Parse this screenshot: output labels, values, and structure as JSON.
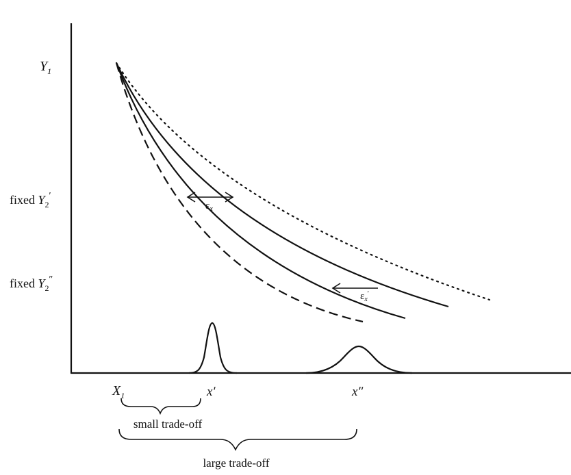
{
  "axes": {
    "y_top_main": "Y",
    "y_top_sub": "1",
    "y_fixed1_prefix": "fixed ",
    "y_fixed1_var": "Y",
    "y_fixed1_sub": "2",
    "y_fixed1_prime": "′",
    "y_fixed2_prefix": "fixed ",
    "y_fixed2_var": "Y",
    "y_fixed2_sub": "2",
    "y_fixed2_prime": "″",
    "x_origin_main": "X",
    "x_origin_sub": "1",
    "x_prime1": "x′",
    "x_prime2": "x″"
  },
  "annotations": {
    "eps1_main": "ε",
    "eps1_sub": "x",
    "eps2_main": "ε",
    "eps2_sub": "x",
    "eps2_prime": "′"
  },
  "braces": {
    "small": "small trade-off",
    "large": "large trade-off"
  }
}
